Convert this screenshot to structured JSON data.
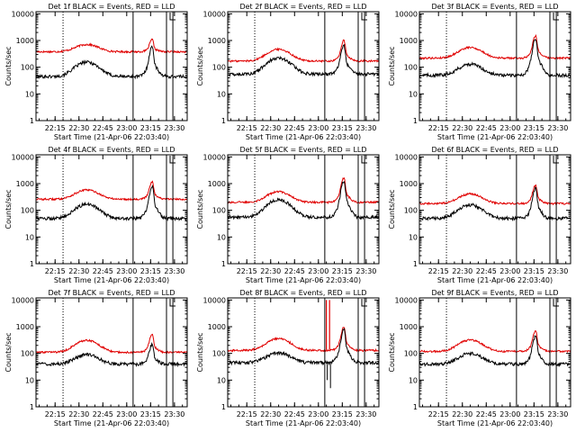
{
  "figure": {
    "xlabel": "Start Time (21-Apr-06 22:03:40)",
    "ylabel": "Counts/sec",
    "series_names": [
      "Events",
      "LLD"
    ],
    "colors": {
      "events": "#000000",
      "lld": "#e00000",
      "frame": "#000000"
    }
  },
  "chart_data": [
    {
      "type": "line",
      "title": "Det 1f BLACK = Events, RED = LLD",
      "xlabel": "Start Time (21-Apr-06 22:03:40)",
      "ylabel": "Counts/sec",
      "yscale": "log",
      "ylim": [
        1,
        12000
      ],
      "xlim_min": [
        0,
        95
      ],
      "x_ticks": [
        "22:15",
        "22:30",
        "22:45",
        "23:00",
        "23:15",
        "23:30"
      ],
      "x_tick_min": [
        12,
        27,
        42,
        57,
        72,
        87
      ],
      "y_ticks": [
        "1",
        "10",
        "100",
        "1000",
        "10000"
      ],
      "y_tick_vals": [
        1,
        10,
        100,
        1000,
        10000
      ],
      "markers_min": [
        {
          "x": 17,
          "style": "dotted"
        },
        {
          "x": 61,
          "style": "solid"
        },
        {
          "x": 82,
          "style": "solid"
        },
        {
          "x": 86,
          "style": "solid"
        }
      ],
      "events": {
        "base": 45,
        "bump_amp": 110,
        "bump_center": 32,
        "bump_width": 9,
        "peak_amp": 450,
        "peak_center": 73
      },
      "lld": {
        "base": 380,
        "bump_amp": 330,
        "bump_center": 32,
        "bump_width": 9,
        "peak_amp": 600,
        "peak_center": 73
      },
      "glitches": []
    },
    {
      "type": "line",
      "title": "Det 2f BLACK = Events, RED = LLD",
      "xlabel": "Start Time (21-Apr-06 22:03:40)",
      "ylabel": "Counts/sec",
      "yscale": "log",
      "ylim": [
        1,
        12000
      ],
      "xlim_min": [
        0,
        95
      ],
      "x_ticks": [
        "22:15",
        "22:30",
        "22:45",
        "23:00",
        "23:15",
        "23:30"
      ],
      "x_tick_min": [
        12,
        27,
        42,
        57,
        72,
        87
      ],
      "y_ticks": [
        "1",
        "10",
        "100",
        "1000",
        "10000"
      ],
      "y_tick_vals": [
        1,
        10,
        100,
        1000,
        10000
      ],
      "markers_min": [
        {
          "x": 17,
          "style": "dotted"
        },
        {
          "x": 61,
          "style": "solid"
        },
        {
          "x": 82,
          "style": "solid"
        },
        {
          "x": 86,
          "style": "solid"
        }
      ],
      "events": {
        "base": 55,
        "bump_amp": 170,
        "bump_center": 32,
        "bump_width": 9,
        "peak_amp": 500,
        "peak_center": 73
      },
      "lld": {
        "base": 170,
        "bump_amp": 300,
        "bump_center": 32,
        "bump_width": 9,
        "peak_amp": 700,
        "peak_center": 73
      },
      "glitches": []
    },
    {
      "type": "line",
      "title": "Det 3f BLACK = Events, RED = LLD",
      "xlabel": "Start Time (21-Apr-06 22:03:40)",
      "ylabel": "Counts/sec",
      "yscale": "log",
      "ylim": [
        1,
        12000
      ],
      "xlim_min": [
        0,
        95
      ],
      "x_ticks": [
        "22:15",
        "22:30",
        "22:45",
        "23:00",
        "23:15",
        "23:30"
      ],
      "x_tick_min": [
        12,
        27,
        42,
        57,
        72,
        87
      ],
      "y_ticks": [
        "1",
        "10",
        "100",
        "1000",
        "10000"
      ],
      "y_tick_vals": [
        1,
        10,
        100,
        1000,
        10000
      ],
      "markers_min": [
        {
          "x": 17,
          "style": "dotted"
        },
        {
          "x": 61,
          "style": "solid"
        },
        {
          "x": 82,
          "style": "solid"
        },
        {
          "x": 86,
          "style": "solid"
        }
      ],
      "events": {
        "base": 50,
        "bump_amp": 80,
        "bump_center": 32,
        "bump_width": 9,
        "peak_amp": 900,
        "peak_center": 73
      },
      "lld": {
        "base": 220,
        "bump_amp": 330,
        "bump_center": 32,
        "bump_width": 9,
        "peak_amp": 1100,
        "peak_center": 73
      },
      "glitches": []
    },
    {
      "type": "line",
      "title": "Det 4f BLACK = Events, RED = LLD",
      "xlabel": "Start Time (21-Apr-06 22:03:40)",
      "ylabel": "Counts/sec",
      "yscale": "log",
      "ylim": [
        1,
        12000
      ],
      "xlim_min": [
        0,
        95
      ],
      "x_ticks": [
        "22:15",
        "22:30",
        "22:45",
        "23:00",
        "23:15",
        "23:30"
      ],
      "x_tick_min": [
        12,
        27,
        42,
        57,
        72,
        87
      ],
      "y_ticks": [
        "1",
        "10",
        "100",
        "1000",
        "10000"
      ],
      "y_tick_vals": [
        1,
        10,
        100,
        1000,
        10000
      ],
      "markers_min": [
        {
          "x": 17,
          "style": "dotted"
        },
        {
          "x": 61,
          "style": "solid"
        },
        {
          "x": 82,
          "style": "solid"
        },
        {
          "x": 86,
          "style": "solid"
        }
      ],
      "events": {
        "base": 50,
        "bump_amp": 120,
        "bump_center": 32,
        "bump_width": 9,
        "peak_amp": 600,
        "peak_center": 73
      },
      "lld": {
        "base": 260,
        "bump_amp": 320,
        "bump_center": 32,
        "bump_width": 9,
        "peak_amp": 800,
        "peak_center": 73
      },
      "glitches": []
    },
    {
      "type": "line",
      "title": "Det 5f BLACK = Events, RED = LLD",
      "xlabel": "Start Time (21-Apr-06 22:03:40)",
      "ylabel": "Counts/sec",
      "yscale": "log",
      "ylim": [
        1,
        12000
      ],
      "xlim_min": [
        0,
        95
      ],
      "x_ticks": [
        "22:15",
        "22:30",
        "22:45",
        "23:00",
        "23:15",
        "23:30"
      ],
      "x_tick_min": [
        12,
        27,
        42,
        57,
        72,
        87
      ],
      "y_ticks": [
        "1",
        "10",
        "100",
        "1000",
        "10000"
      ],
      "y_tick_vals": [
        1,
        10,
        100,
        1000,
        10000
      ],
      "markers_min": [
        {
          "x": 17,
          "style": "dotted"
        },
        {
          "x": 61,
          "style": "solid"
        },
        {
          "x": 82,
          "style": "solid"
        },
        {
          "x": 86,
          "style": "solid"
        }
      ],
      "events": {
        "base": 55,
        "bump_amp": 200,
        "bump_center": 32,
        "bump_width": 9,
        "peak_amp": 1000,
        "peak_center": 73
      },
      "lld": {
        "base": 200,
        "bump_amp": 300,
        "bump_center": 32,
        "bump_width": 9,
        "peak_amp": 1200,
        "peak_center": 73
      },
      "glitches": []
    },
    {
      "type": "line",
      "title": "Det 6f BLACK = Events, RED = LLD",
      "xlabel": "Start Time (21-Apr-06 22:03:40)",
      "ylabel": "Counts/sec",
      "yscale": "log",
      "ylim": [
        1,
        12000
      ],
      "xlim_min": [
        0,
        95
      ],
      "x_ticks": [
        "22:15",
        "22:30",
        "22:45",
        "23:00",
        "23:15",
        "23:30"
      ],
      "x_tick_min": [
        12,
        27,
        42,
        57,
        72,
        87
      ],
      "y_ticks": [
        "1",
        "10",
        "100",
        "1000",
        "10000"
      ],
      "y_tick_vals": [
        1,
        10,
        100,
        1000,
        10000
      ],
      "markers_min": [
        {
          "x": 17,
          "style": "dotted"
        },
        {
          "x": 61,
          "style": "solid"
        },
        {
          "x": 82,
          "style": "solid"
        },
        {
          "x": 86,
          "style": "solid"
        }
      ],
      "events": {
        "base": 50,
        "bump_amp": 110,
        "bump_center": 32,
        "bump_width": 9,
        "peak_amp": 500,
        "peak_center": 73
      },
      "lld": {
        "base": 180,
        "bump_amp": 230,
        "bump_center": 32,
        "bump_width": 9,
        "peak_amp": 600,
        "peak_center": 73
      },
      "glitches": []
    },
    {
      "type": "line",
      "title": "Det 7f BLACK = Events, RED = LLD",
      "xlabel": "Start Time (21-Apr-06 22:03:40)",
      "ylabel": "Counts/sec",
      "yscale": "log",
      "ylim": [
        1,
        12000
      ],
      "xlim_min": [
        0,
        95
      ],
      "x_ticks": [
        "22:15",
        "22:30",
        "22:45",
        "23:00",
        "23:15",
        "23:30"
      ],
      "x_tick_min": [
        12,
        27,
        42,
        57,
        72,
        87
      ],
      "y_ticks": [
        "1",
        "10",
        "100",
        "1000",
        "10000"
      ],
      "y_tick_vals": [
        1,
        10,
        100,
        1000,
        10000
      ],
      "markers_min": [
        {
          "x": 17,
          "style": "dotted"
        },
        {
          "x": 61,
          "style": "solid"
        },
        {
          "x": 82,
          "style": "solid"
        },
        {
          "x": 86,
          "style": "solid"
        }
      ],
      "events": {
        "base": 40,
        "bump_amp": 50,
        "bump_center": 32,
        "bump_width": 9,
        "peak_amp": 150,
        "peak_center": 73
      },
      "lld": {
        "base": 110,
        "bump_amp": 200,
        "bump_center": 32,
        "bump_width": 9,
        "peak_amp": 350,
        "peak_center": 73
      },
      "glitches": []
    },
    {
      "type": "line",
      "title": "Det 8f BLACK = Events, RED = LLD",
      "xlabel": "Start Time (21-Apr-06 22:03:40)",
      "ylabel": "Counts/sec",
      "yscale": "log",
      "ylim": [
        1,
        12000
      ],
      "xlim_min": [
        0,
        95
      ],
      "x_ticks": [
        "22:15",
        "22:30",
        "22:45",
        "23:00",
        "23:15",
        "23:30"
      ],
      "x_tick_min": [
        12,
        27,
        42,
        57,
        72,
        87
      ],
      "y_ticks": [
        "1",
        "10",
        "100",
        "1000",
        "10000"
      ],
      "y_tick_vals": [
        1,
        10,
        100,
        1000,
        10000
      ],
      "markers_min": [
        {
          "x": 17,
          "style": "dotted"
        },
        {
          "x": 61,
          "style": "solid"
        },
        {
          "x": 82,
          "style": "solid"
        },
        {
          "x": 86,
          "style": "solid"
        }
      ],
      "events": {
        "base": 45,
        "bump_amp": 60,
        "bump_center": 32,
        "bump_width": 9,
        "peak_amp": 600,
        "peak_center": 73
      },
      "lld": {
        "base": 130,
        "bump_amp": 230,
        "bump_center": 32,
        "bump_width": 9,
        "peak_amp": 700,
        "peak_center": 73
      },
      "glitches": [
        {
          "x": 62,
          "red_top": 10000,
          "black_bottom": 10
        },
        {
          "x": 64,
          "red_top": 10000,
          "black_bottom": 5
        }
      ]
    },
    {
      "type": "line",
      "title": "Det 9f BLACK = Events, RED = LLD",
      "xlabel": "Start Time (21-Apr-06 22:03:40)",
      "ylabel": "Counts/sec",
      "yscale": "log",
      "ylim": [
        1,
        12000
      ],
      "xlim_min": [
        0,
        95
      ],
      "x_ticks": [
        "22:15",
        "22:30",
        "22:45",
        "23:00",
        "23:15",
        "23:30"
      ],
      "x_tick_min": [
        12,
        27,
        42,
        57,
        72,
        87
      ],
      "y_ticks": [
        "1",
        "10",
        "100",
        "1000",
        "10000"
      ],
      "y_tick_vals": [
        1,
        10,
        100,
        1000,
        10000
      ],
      "markers_min": [
        {
          "x": 17,
          "style": "dotted"
        },
        {
          "x": 61,
          "style": "solid"
        },
        {
          "x": 82,
          "style": "solid"
        },
        {
          "x": 86,
          "style": "solid"
        }
      ],
      "events": {
        "base": 40,
        "bump_amp": 60,
        "bump_center": 32,
        "bump_width": 9,
        "peak_amp": 350,
        "peak_center": 73
      },
      "lld": {
        "base": 120,
        "bump_amp": 200,
        "bump_center": 32,
        "bump_width": 9,
        "peak_amp": 500,
        "peak_center": 73
      },
      "glitches": []
    }
  ]
}
